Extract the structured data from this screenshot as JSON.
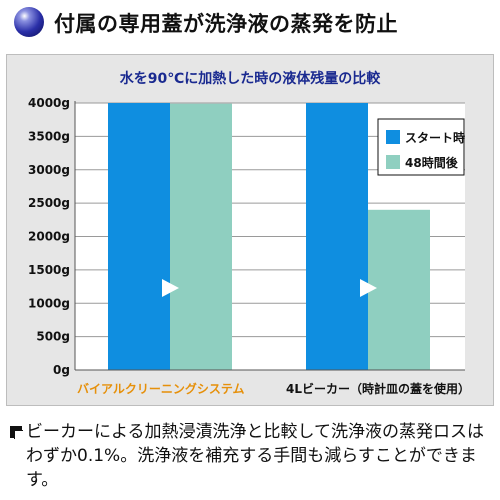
{
  "header": {
    "title": "付属の専用蓋が洗浄液の蒸発を防止",
    "icon": "blue-sphere-icon"
  },
  "chart_data": {
    "type": "bar",
    "title": "水を90℃に加熱した時の液体残量の比較",
    "categories": [
      "バイアルクリーニングシステム",
      "4Lビーカー（時計皿の蓋を使用）"
    ],
    "series": [
      {
        "name": "スタート時",
        "color": "#0f8ee0",
        "values": [
          4000,
          4000
        ]
      },
      {
        "name": "48時間後",
        "color": "#8fcfc0",
        "values": [
          3990,
          2400
        ]
      }
    ],
    "ylim": [
      0,
      4000
    ],
    "yticks": [
      0,
      500,
      1000,
      1500,
      2000,
      2500,
      3000,
      3500,
      4000
    ],
    "ytick_labels": [
      "0g",
      "500g",
      "1000g",
      "1500g",
      "2000g",
      "2500g",
      "3000g",
      "3500g",
      "4000g"
    ],
    "category_colors": [
      "#e6900a",
      "#111111"
    ],
    "legend_position": "top-right",
    "grid": true
  },
  "description": "ビーカーによる加熱浸漬洗浄と比較して洗浄液の蒸発ロスはわずか0.1%。洗浄液を補充する手間も減らすことができます。"
}
